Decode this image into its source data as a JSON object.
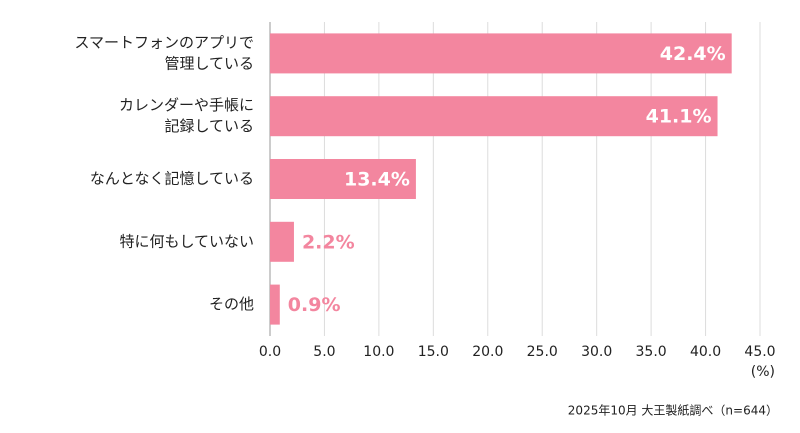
{
  "chart_data": {
    "type": "barh",
    "categories": [
      [
        "スマートフォンのアプリで",
        "管理している"
      ],
      [
        "カレンダーや手帳に",
        "記録している"
      ],
      [
        "なんとなく記憶している"
      ],
      [
        "特に何もしていない"
      ],
      [
        "その他"
      ]
    ],
    "values": [
      42.4,
      41.1,
      13.4,
      2.2,
      0.9
    ],
    "value_labels": [
      "42.4%",
      "41.1%",
      "13.4%",
      "2.2%",
      "0.9%"
    ],
    "color": "#f3869f",
    "xlim": [
      0,
      45
    ],
    "xticks": [
      {
        "value": 0,
        "label": "0.0"
      },
      {
        "value": 5,
        "label": "5.0"
      },
      {
        "value": 10,
        "label": "10.0"
      },
      {
        "value": 15,
        "label": "15.0"
      },
      {
        "value": 20,
        "label": "20.0"
      },
      {
        "value": 25,
        "label": "25.0"
      },
      {
        "value": 30,
        "label": "30.0"
      },
      {
        "value": 35,
        "label": "35.0"
      },
      {
        "value": 40,
        "label": "40.0"
      },
      {
        "value": 45,
        "label": "45.0"
      }
    ],
    "x_label": "(%)",
    "grid": true,
    "source": "2025年10月 大王製紙調べ（n=644）"
  }
}
